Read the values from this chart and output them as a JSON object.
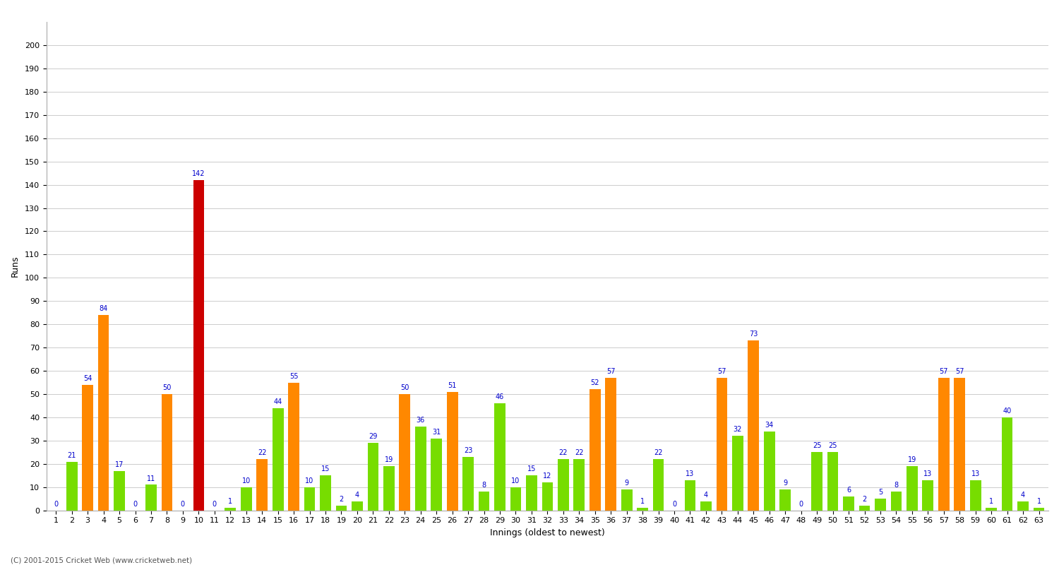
{
  "xlabel": "Innings (oldest to newest)",
  "ylabel": "Runs",
  "footer": "(C) 2001-2015 Cricket Web (www.cricketweb.net)",
  "ylim": [
    0,
    210
  ],
  "yticks": [
    0,
    10,
    20,
    30,
    40,
    50,
    60,
    70,
    80,
    90,
    100,
    110,
    120,
    130,
    140,
    150,
    160,
    170,
    180,
    190,
    200
  ],
  "innings": [
    {
      "label": "1",
      "value": 0,
      "color": "orange"
    },
    {
      "label": "2",
      "value": 21,
      "color": "green"
    },
    {
      "label": "3",
      "value": 54,
      "color": "orange"
    },
    {
      "label": "4",
      "value": 84,
      "color": "orange"
    },
    {
      "label": "5",
      "value": 17,
      "color": "green"
    },
    {
      "label": "6",
      "value": 0,
      "color": "orange"
    },
    {
      "label": "7",
      "value": 11,
      "color": "green"
    },
    {
      "label": "8",
      "value": 50,
      "color": "orange"
    },
    {
      "label": "9",
      "value": 0,
      "color": "orange"
    },
    {
      "label": "10",
      "value": 142,
      "color": "red"
    },
    {
      "label": "11",
      "value": 0,
      "color": "orange"
    },
    {
      "label": "12",
      "value": 1,
      "color": "green"
    },
    {
      "label": "13",
      "value": 10,
      "color": "green"
    },
    {
      "label": "14",
      "value": 22,
      "color": "orange"
    },
    {
      "label": "15",
      "value": 44,
      "color": "green"
    },
    {
      "label": "16",
      "value": 55,
      "color": "orange"
    },
    {
      "label": "17",
      "value": 10,
      "color": "green"
    },
    {
      "label": "18",
      "value": 15,
      "color": "green"
    },
    {
      "label": "19",
      "value": 2,
      "color": "green"
    },
    {
      "label": "20",
      "value": 4,
      "color": "green"
    },
    {
      "label": "21",
      "value": 29,
      "color": "green"
    },
    {
      "label": "22",
      "value": 19,
      "color": "green"
    },
    {
      "label": "23",
      "value": 50,
      "color": "orange"
    },
    {
      "label": "24",
      "value": 36,
      "color": "green"
    },
    {
      "label": "25",
      "value": 31,
      "color": "green"
    },
    {
      "label": "26",
      "value": 51,
      "color": "orange"
    },
    {
      "label": "27",
      "value": 23,
      "color": "green"
    },
    {
      "label": "28",
      "value": 8,
      "color": "green"
    },
    {
      "label": "29",
      "value": 46,
      "color": "green"
    },
    {
      "label": "30",
      "value": 10,
      "color": "green"
    },
    {
      "label": "31",
      "value": 15,
      "color": "green"
    },
    {
      "label": "32",
      "value": 12,
      "color": "green"
    },
    {
      "label": "33",
      "value": 22,
      "color": "green"
    },
    {
      "label": "34",
      "value": 22,
      "color": "green"
    },
    {
      "label": "35",
      "value": 52,
      "color": "orange"
    },
    {
      "label": "36",
      "value": 57,
      "color": "orange"
    },
    {
      "label": "37",
      "value": 9,
      "color": "green"
    },
    {
      "label": "38",
      "value": 1,
      "color": "green"
    },
    {
      "label": "39",
      "value": 22,
      "color": "green"
    },
    {
      "label": "40",
      "value": 0,
      "color": "orange"
    },
    {
      "label": "41",
      "value": 13,
      "color": "green"
    },
    {
      "label": "42",
      "value": 4,
      "color": "green"
    },
    {
      "label": "43",
      "value": 57,
      "color": "orange"
    },
    {
      "label": "44",
      "value": 32,
      "color": "green"
    },
    {
      "label": "45",
      "value": 73,
      "color": "orange"
    },
    {
      "label": "46",
      "value": 34,
      "color": "green"
    },
    {
      "label": "47",
      "value": 9,
      "color": "green"
    },
    {
      "label": "48",
      "value": 0,
      "color": "orange"
    },
    {
      "label": "49",
      "value": 25,
      "color": "green"
    },
    {
      "label": "50",
      "value": 25,
      "color": "green"
    },
    {
      "label": "51",
      "value": 6,
      "color": "green"
    },
    {
      "label": "52",
      "value": 2,
      "color": "green"
    },
    {
      "label": "53",
      "value": 5,
      "color": "green"
    },
    {
      "label": "54",
      "value": 8,
      "color": "green"
    },
    {
      "label": "55",
      "value": 19,
      "color": "green"
    },
    {
      "label": "56",
      "value": 13,
      "color": "green"
    },
    {
      "label": "57",
      "value": 57,
      "color": "orange"
    },
    {
      "label": "58",
      "value": 57,
      "color": "orange"
    },
    {
      "label": "59",
      "value": 13,
      "color": "green"
    },
    {
      "label": "60",
      "value": 1,
      "color": "green"
    },
    {
      "label": "61",
      "value": 40,
      "color": "green"
    },
    {
      "label": "62",
      "value": 4,
      "color": "green"
    },
    {
      "label": "63",
      "value": 1,
      "color": "green"
    }
  ],
  "colors": {
    "green": "#77dd00",
    "orange": "#ff8800",
    "red": "#cc0000",
    "label_color": "#0000cc",
    "background": "#ffffff",
    "grid_color": "#cccccc"
  },
  "bar_width": 0.7,
  "axis_fontsize": 9,
  "label_fontsize": 7,
  "tick_fontsize": 8
}
